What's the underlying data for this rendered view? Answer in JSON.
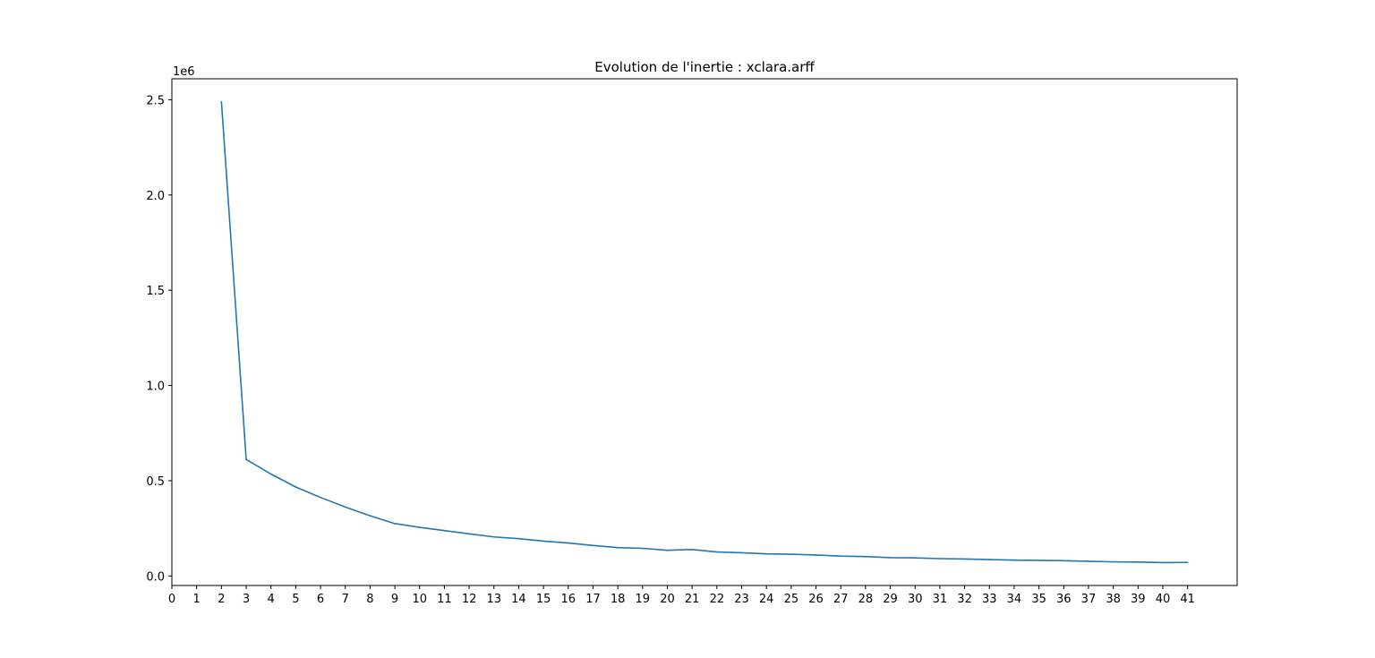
{
  "chart_data": {
    "type": "line",
    "title": "Evolution de l'inertie : xclara.arff",
    "xlabel": "",
    "ylabel": "",
    "y_offset_label": "1e6",
    "xlim": [
      0,
      43
    ],
    "ylim": [
      -50000,
      2610000
    ],
    "x_ticks": [
      0,
      1,
      2,
      3,
      4,
      5,
      6,
      7,
      8,
      9,
      10,
      11,
      12,
      13,
      14,
      15,
      16,
      17,
      18,
      19,
      20,
      21,
      22,
      23,
      24,
      25,
      26,
      27,
      28,
      29,
      30,
      31,
      32,
      33,
      34,
      35,
      36,
      37,
      38,
      39,
      40,
      41
    ],
    "x_tick_labels": [
      "0",
      "1",
      "2",
      "3",
      "4",
      "5",
      "6",
      "7",
      "8",
      "9",
      "10",
      "11",
      "12",
      "13",
      "14",
      "15",
      "16",
      "17",
      "18",
      "19",
      "20",
      "21",
      "22",
      "23",
      "24",
      "25",
      "26",
      "27",
      "28",
      "29",
      "30",
      "31",
      "32",
      "33",
      "34",
      "35",
      "36",
      "37",
      "38",
      "39",
      "40",
      "41"
    ],
    "y_ticks": [
      0,
      500000,
      1000000,
      1500000,
      2000000,
      2500000
    ],
    "y_tick_labels": [
      "0.0",
      "0.5",
      "1.0",
      "1.5",
      "2.0",
      "2.5"
    ],
    "grid": false,
    "legend": "none",
    "series": [
      {
        "color": "#1f77b4",
        "x": [
          2,
          3,
          4,
          5,
          6,
          7,
          8,
          9,
          10,
          11,
          12,
          13,
          14,
          15,
          16,
          17,
          18,
          19,
          20,
          21,
          22,
          23,
          24,
          25,
          26,
          27,
          28,
          29,
          30,
          31,
          32,
          33,
          34,
          35,
          36,
          37,
          38,
          39,
          40,
          41
        ],
        "values": [
          2490000,
          612000,
          535000,
          467000,
          412000,
          362000,
          316000,
          275000,
          255000,
          238000,
          221000,
          205000,
          196000,
          183000,
          173000,
          160000,
          149000,
          145000,
          135000,
          139000,
          126000,
          122000,
          116000,
          114000,
          110000,
          104000,
          102000,
          96000,
          95000,
          91000,
          89000,
          86000,
          83000,
          82000,
          80000,
          77000,
          74000,
          73000,
          70000,
          71000
        ]
      }
    ]
  }
}
